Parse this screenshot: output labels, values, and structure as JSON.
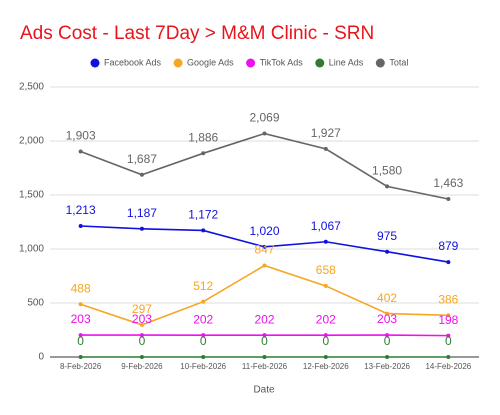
{
  "chart_data": {
    "type": "line",
    "title": "Ads Cost - Last 7Day > M&M Clinic - SRN",
    "x_label": "Date",
    "categories": [
      "8-Feb-2026",
      "9-Feb-2026",
      "10-Feb-2026",
      "11-Feb-2026",
      "12-Feb-2026",
      "13-Feb-2026",
      "14-Feb-2026"
    ],
    "series": [
      {
        "name": "Facebook Ads",
        "color": "#1010e0",
        "values": [
          1213,
          1187,
          1172,
          1020,
          1067,
          975,
          879
        ],
        "value_labels": [
          "1,213",
          "1,187",
          "1,172",
          "1,020",
          "1,067",
          "975",
          "879"
        ]
      },
      {
        "name": "Google Ads",
        "color": "#f5a623",
        "values": [
          488,
          297,
          512,
          847,
          658,
          402,
          386
        ]
      },
      {
        "name": "TikTok Ads",
        "color": "#ee10ee",
        "values": [
          203,
          203,
          202,
          202,
          202,
          203,
          198
        ]
      },
      {
        "name": "Line Ads",
        "color": "#2e7d32",
        "values": [
          0,
          0,
          0,
          0,
          0,
          0,
          0
        ]
      },
      {
        "name": "Total",
        "color": "#666666",
        "values": [
          1903,
          1687,
          1886,
          2069,
          1927,
          1580,
          1463
        ],
        "value_labels": [
          "1,903",
          "1,687",
          "1,886",
          "2,069",
          "1,927",
          "1,580",
          "1,463"
        ]
      }
    ],
    "ylim": [
      0,
      2500
    ],
    "yticks": [
      0,
      500,
      {
        "value": 1000,
        "label": "1,000"
      },
      {
        "value": 1500,
        "label": "1,500"
      },
      {
        "value": 2000,
        "label": "2,000"
      },
      {
        "value": 2500,
        "label": "2,500"
      }
    ],
    "grid": true,
    "legend": "top"
  }
}
